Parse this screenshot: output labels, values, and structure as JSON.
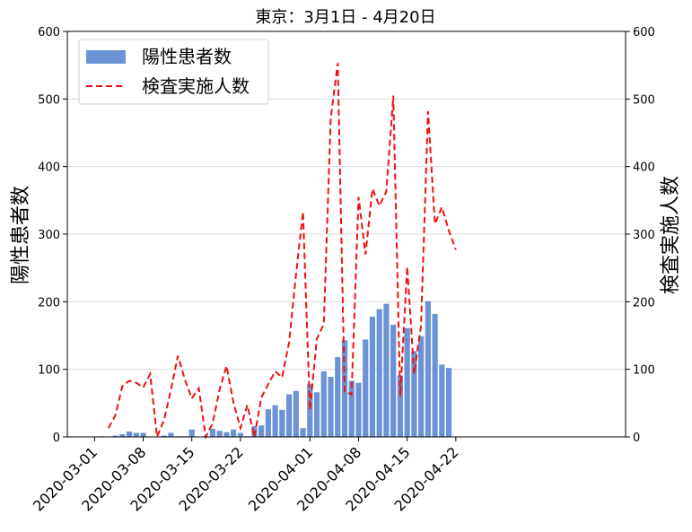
{
  "chart_data": {
    "type": "bar",
    "title": "東京：3月1日 - 4月20日",
    "ylabel_left": "陽性患者数",
    "ylabel_right": "検査実施人数",
    "ylim": [
      0,
      600
    ],
    "yticks": [
      "0",
      "100",
      "200",
      "300",
      "400",
      "500",
      "600"
    ],
    "xtick_dates": [
      "2020-03-01",
      "2020-03-08",
      "2020-03-15",
      "2020-03-22",
      "2020-04-01",
      "2020-04-08",
      "2020-04-15",
      "2020-04-22"
    ],
    "grid": true,
    "legend_position": "upper-left",
    "colors": {
      "bars": "#6b93d6",
      "line": "#ee1111"
    },
    "series": [
      {
        "name": "陽性患者数",
        "type": "bar",
        "points": [
          [
            "2020-03-02",
            1
          ],
          [
            "2020-03-03",
            0
          ],
          [
            "2020-03-04",
            2
          ],
          [
            "2020-03-05",
            4
          ],
          [
            "2020-03-06",
            8
          ],
          [
            "2020-03-07",
            6
          ],
          [
            "2020-03-08",
            6
          ],
          [
            "2020-03-09",
            0
          ],
          [
            "2020-03-10",
            0
          ],
          [
            "2020-03-11",
            2
          ],
          [
            "2020-03-12",
            6
          ],
          [
            "2020-03-13",
            1
          ],
          [
            "2020-03-14",
            1
          ],
          [
            "2020-03-15",
            11
          ],
          [
            "2020-03-16",
            0
          ],
          [
            "2020-03-17",
            1
          ],
          [
            "2020-03-18",
            12
          ],
          [
            "2020-03-19",
            9
          ],
          [
            "2020-03-20",
            7
          ],
          [
            "2020-03-21",
            11
          ],
          [
            "2020-03-22",
            6
          ],
          [
            "2020-03-23",
            1
          ],
          [
            "2020-03-24",
            16
          ],
          [
            "2020-03-25",
            17
          ],
          [
            "2020-03-26",
            41
          ],
          [
            "2020-03-27",
            47
          ],
          [
            "2020-03-28",
            40
          ],
          [
            "2020-03-29",
            63
          ],
          [
            "2020-03-30",
            68
          ],
          [
            "2020-03-31",
            13
          ],
          [
            "2020-04-01",
            78
          ],
          [
            "2020-04-02",
            66
          ],
          [
            "2020-04-03",
            97
          ],
          [
            "2020-04-04",
            89
          ],
          [
            "2020-04-05",
            118
          ],
          [
            "2020-04-06",
            143
          ],
          [
            "2020-04-07",
            83
          ],
          [
            "2020-04-08",
            80
          ],
          [
            "2020-04-09",
            144
          ],
          [
            "2020-04-10",
            178
          ],
          [
            "2020-04-11",
            189
          ],
          [
            "2020-04-12",
            197
          ],
          [
            "2020-04-13",
            166
          ],
          [
            "2020-04-14",
            91
          ],
          [
            "2020-04-15",
            161
          ],
          [
            "2020-04-16",
            127
          ],
          [
            "2020-04-17",
            149
          ],
          [
            "2020-04-18",
            201
          ],
          [
            "2020-04-19",
            182
          ],
          [
            "2020-04-20",
            107
          ],
          [
            "2020-04-21",
            102
          ]
        ]
      },
      {
        "name": "検査実施人数",
        "type": "line",
        "style": "dashed",
        "points": [
          [
            "2020-03-03",
            13
          ],
          [
            "2020-03-04",
            32
          ],
          [
            "2020-03-05",
            75
          ],
          [
            "2020-03-06",
            83
          ],
          [
            "2020-03-07",
            80
          ],
          [
            "2020-03-08",
            73
          ],
          [
            "2020-03-09",
            93
          ],
          [
            "2020-03-10",
            0
          ],
          [
            "2020-03-11",
            25
          ],
          [
            "2020-03-12",
            70
          ],
          [
            "2020-03-13",
            120
          ],
          [
            "2020-03-14",
            85
          ],
          [
            "2020-03-15",
            57
          ],
          [
            "2020-03-16",
            72
          ],
          [
            "2020-03-17",
            0
          ],
          [
            "2020-03-18",
            20
          ],
          [
            "2020-03-19",
            70
          ],
          [
            "2020-03-20",
            105
          ],
          [
            "2020-03-21",
            50
          ],
          [
            "2020-03-22",
            13
          ],
          [
            "2020-03-23",
            47
          ],
          [
            "2020-03-24",
            0
          ],
          [
            "2020-03-25",
            58
          ],
          [
            "2020-03-26",
            78
          ],
          [
            "2020-03-27",
            97
          ],
          [
            "2020-03-28",
            88
          ],
          [
            "2020-03-29",
            140
          ],
          [
            "2020-03-30",
            240
          ],
          [
            "2020-03-31",
            333
          ],
          [
            "2020-04-01",
            40
          ],
          [
            "2020-04-02",
            145
          ],
          [
            "2020-04-03",
            167
          ],
          [
            "2020-04-04",
            472
          ],
          [
            "2020-04-05",
            553
          ],
          [
            "2020-04-06",
            67
          ],
          [
            "2020-04-07",
            63
          ],
          [
            "2020-04-08",
            355
          ],
          [
            "2020-04-09",
            270
          ],
          [
            "2020-04-10",
            367
          ],
          [
            "2020-04-11",
            342
          ],
          [
            "2020-04-12",
            363
          ],
          [
            "2020-04-13",
            505
          ],
          [
            "2020-04-14",
            60
          ],
          [
            "2020-04-15",
            252
          ],
          [
            "2020-04-16",
            93
          ],
          [
            "2020-04-17",
            165
          ],
          [
            "2020-04-18",
            482
          ],
          [
            "2020-04-19",
            315
          ],
          [
            "2020-04-20",
            340
          ],
          [
            "2020-04-21",
            305
          ],
          [
            "2020-04-22",
            277
          ]
        ]
      }
    ]
  }
}
